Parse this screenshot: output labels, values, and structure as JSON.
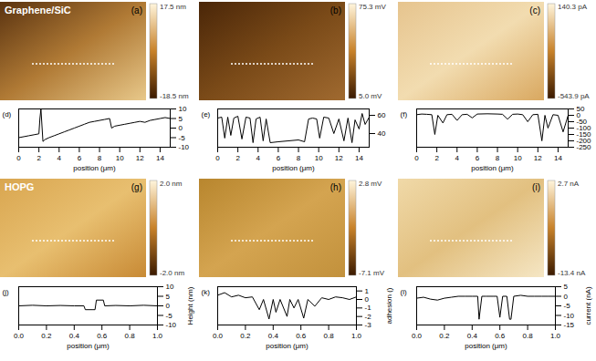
{
  "images": [
    {
      "panel": "(a)",
      "caption": "Graphene/SiC",
      "colorbar": {
        "max": {
          "value": 17.5,
          "label": "17.5 nm"
        },
        "min": {
          "value": -18.5,
          "label": "-18.5 nm"
        }
      }
    },
    {
      "panel": "(b)",
      "colorbar": {
        "max": {
          "value": 75.3,
          "label": "75.3 mV"
        },
        "min": {
          "value": 5.0,
          "label": "5.0 mV"
        }
      }
    },
    {
      "panel": "(c)",
      "colorbar": {
        "max": {
          "value": 140.3,
          "label": "140.3 pA"
        },
        "min": {
          "value": -543.9,
          "label": "-543.9 pA"
        }
      }
    },
    {
      "panel": "(g)",
      "caption": "HOPG",
      "colorbar": {
        "max": {
          "value": 2.0,
          "label": "2.0 nm"
        },
        "min": {
          "value": -2.0,
          "label": "-2.0 nm"
        }
      }
    },
    {
      "panel": "(h)",
      "colorbar": {
        "max": {
          "value": 2.8,
          "label": "2.8 mV"
        },
        "min": {
          "value": -7.1,
          "label": "-7.1 mV"
        }
      }
    },
    {
      "panel": "(i)",
      "colorbar": {
        "max": {
          "value": 2.7,
          "label": "2.7 nA"
        },
        "min": {
          "value": -13.4,
          "label": "-13.4 nA"
        }
      }
    }
  ],
  "chart_data": [
    {
      "type": "line",
      "title": "(d)",
      "x_label": "position (μm)",
      "color": "#000000",
      "x": [
        0,
        0.5,
        1,
        1.5,
        2,
        2.1,
        2.2,
        2.4,
        2.6,
        3,
        3.5,
        4,
        4.5,
        5,
        5.5,
        6,
        6.5,
        7,
        7.5,
        8,
        8.5,
        9,
        9.2,
        9.5,
        10,
        10.5,
        11,
        11.5,
        12,
        12.5,
        13,
        13.5,
        14,
        14.5,
        15
      ],
      "values": [
        -5,
        -4.5,
        -4,
        -3.5,
        -3,
        5,
        10,
        -7,
        -6,
        -5,
        -4,
        -3,
        -2,
        -1,
        0,
        1,
        2,
        3,
        3.5,
        4,
        4.5,
        5,
        0,
        1,
        1.5,
        2,
        2.5,
        3,
        3.5,
        3,
        4,
        4.5,
        5,
        5.5,
        5
      ],
      "xlim": [
        0,
        15
      ],
      "xticks": [
        0,
        2,
        4,
        6,
        8,
        10,
        12,
        14
      ],
      "ylim": [
        -10,
        10
      ],
      "yticks": [
        -10,
        -5,
        0,
        5,
        10
      ]
    },
    {
      "type": "line",
      "title": "(e)",
      "x_label": "position (μm)",
      "color": "#000000",
      "x": [
        0,
        0.4,
        0.7,
        1,
        1.3,
        1.6,
        2,
        2.4,
        2.8,
        3.2,
        3.5,
        3.8,
        4.2,
        4.5,
        4.8,
        5.2,
        6,
        7,
        8,
        8.6,
        9,
        9.4,
        9.8,
        10.1,
        10.5,
        11,
        11.5,
        12,
        12.5,
        12.9,
        13.3,
        13.6,
        14,
        14.3,
        14.6,
        15
      ],
      "values": [
        57,
        58,
        35,
        58,
        38,
        57,
        59,
        34,
        58,
        57,
        30,
        56,
        58,
        32,
        56,
        30,
        31,
        32,
        33,
        31,
        56,
        57,
        56,
        35,
        58,
        57,
        40,
        56,
        32,
        57,
        30,
        55,
        45,
        62,
        50,
        58
      ],
      "xlim": [
        0,
        15
      ],
      "xticks": [
        0,
        2,
        4,
        6,
        8,
        10,
        12,
        14
      ],
      "ylim": [
        25,
        67
      ],
      "yticks": [
        40,
        60
      ]
    },
    {
      "type": "line",
      "title": "(f)",
      "x_label": "position (μm)",
      "color": "#000000",
      "x": [
        0,
        0.5,
        1,
        1.5,
        1.8,
        2.1,
        2.6,
        3,
        3.5,
        4,
        4.5,
        5,
        5.5,
        6,
        7,
        8,
        8.5,
        9,
        9.5,
        10,
        10.5,
        11,
        11.5,
        12,
        12.4,
        12.7,
        13,
        13.5,
        14,
        14.5,
        15
      ],
      "values": [
        5,
        10,
        8,
        5,
        -150,
        0,
        -60,
        5,
        8,
        -40,
        5,
        8,
        -20,
        10,
        12,
        10,
        8,
        -30,
        8,
        10,
        5,
        -50,
        5,
        8,
        -200,
        0,
        -100,
        5,
        0,
        -130,
        0
      ],
      "xlim": [
        0,
        15
      ],
      "xticks": [
        0,
        2,
        4,
        6,
        8,
        10,
        12,
        14
      ],
      "ylim": [
        -250,
        50
      ],
      "yticks": [
        -250,
        -200,
        -150,
        -100,
        -50,
        0,
        50
      ]
    },
    {
      "type": "line",
      "title": "(j)",
      "x_label": "position (μm)",
      "y_label": "Height (nm)",
      "color": "#000000",
      "x": [
        0,
        0.1,
        0.2,
        0.3,
        0.4,
        0.47,
        0.48,
        0.53,
        0.55,
        0.56,
        0.61,
        0.62,
        0.7,
        0.8,
        0.9,
        1.0
      ],
      "values": [
        0,
        0.3,
        0,
        0.2,
        0,
        0,
        -2,
        -2,
        -2,
        3,
        3,
        0,
        0.2,
        0,
        0.3,
        0
      ],
      "xlim": [
        0,
        1
      ],
      "xticks": [
        {
          "value": 0,
          "label": "0.0"
        },
        {
          "value": 0.2,
          "label": "0.2"
        },
        {
          "value": 0.4,
          "label": "0.4"
        },
        {
          "value": 0.6,
          "label": "0.6"
        },
        {
          "value": 0.8,
          "label": "0.8"
        },
        {
          "value": 1,
          "label": "1.0"
        }
      ],
      "ylim": [
        -10,
        10
      ],
      "yticks": [
        -10,
        -5,
        0,
        5,
        10
      ]
    },
    {
      "type": "line",
      "title": "(k)",
      "x_label": "position (μm)",
      "y_label": "adhesion ()",
      "color": "#000000",
      "x": [
        0,
        0.05,
        0.1,
        0.15,
        0.2,
        0.25,
        0.3,
        0.33,
        0.37,
        0.4,
        0.42,
        0.45,
        0.5,
        0.52,
        0.55,
        0.58,
        0.62,
        0.65,
        0.7,
        0.75,
        0.8,
        0.85,
        0.9,
        0.95,
        1.0
      ],
      "values": [
        0.5,
        0.8,
        0.3,
        0.5,
        0.2,
        0.3,
        -1.2,
        0,
        -2.3,
        0,
        -1.5,
        0,
        -2,
        0,
        -1,
        0,
        -2.2,
        0,
        -0.8,
        0.2,
        0,
        0.3,
        0.2,
        0,
        0.3
      ],
      "xlim": [
        0,
        1
      ],
      "xticks": [
        {
          "value": 0,
          "label": "0.0"
        },
        {
          "value": 0.2,
          "label": "0.2"
        },
        {
          "value": 0.4,
          "label": "0.4"
        },
        {
          "value": 0.6,
          "label": "0.6"
        },
        {
          "value": 0.8,
          "label": "0.8"
        },
        {
          "value": 1,
          "label": "1.0"
        }
      ],
      "ylim": [
        -3,
        1.5
      ],
      "yticks": [
        -3,
        -2,
        -1,
        0,
        1
      ]
    },
    {
      "type": "line",
      "title": "(l)",
      "x_label": "position (μm)",
      "y_label": "current (nA)",
      "color": "#000000",
      "x": [
        0,
        0.05,
        0.1,
        0.15,
        0.2,
        0.25,
        0.3,
        0.35,
        0.4,
        0.44,
        0.45,
        0.47,
        0.5,
        0.55,
        0.58,
        0.6,
        0.62,
        0.65,
        0.67,
        0.68,
        0.7,
        0.75,
        0.8,
        0.85,
        0.9,
        0.95,
        1.0
      ],
      "values": [
        -1,
        -0.5,
        -1.5,
        -2,
        -1,
        -0.5,
        0,
        0,
        0,
        0,
        -12,
        0,
        0,
        0,
        0,
        -11,
        0,
        0,
        -12,
        -12,
        0,
        0.5,
        0,
        0,
        0,
        0,
        0
      ],
      "xlim": [
        0,
        1
      ],
      "xticks": [
        {
          "value": 0,
          "label": "0.0"
        },
        {
          "value": 0.2,
          "label": "0.2"
        },
        {
          "value": 0.4,
          "label": "0.4"
        },
        {
          "value": 0.6,
          "label": "0.6"
        },
        {
          "value": 0.8,
          "label": "0.8"
        },
        {
          "value": 1,
          "label": "1.0"
        }
      ],
      "ylim": [
        -15,
        5
      ],
      "yticks": [
        -15,
        -10,
        -5,
        0,
        5
      ]
    }
  ]
}
